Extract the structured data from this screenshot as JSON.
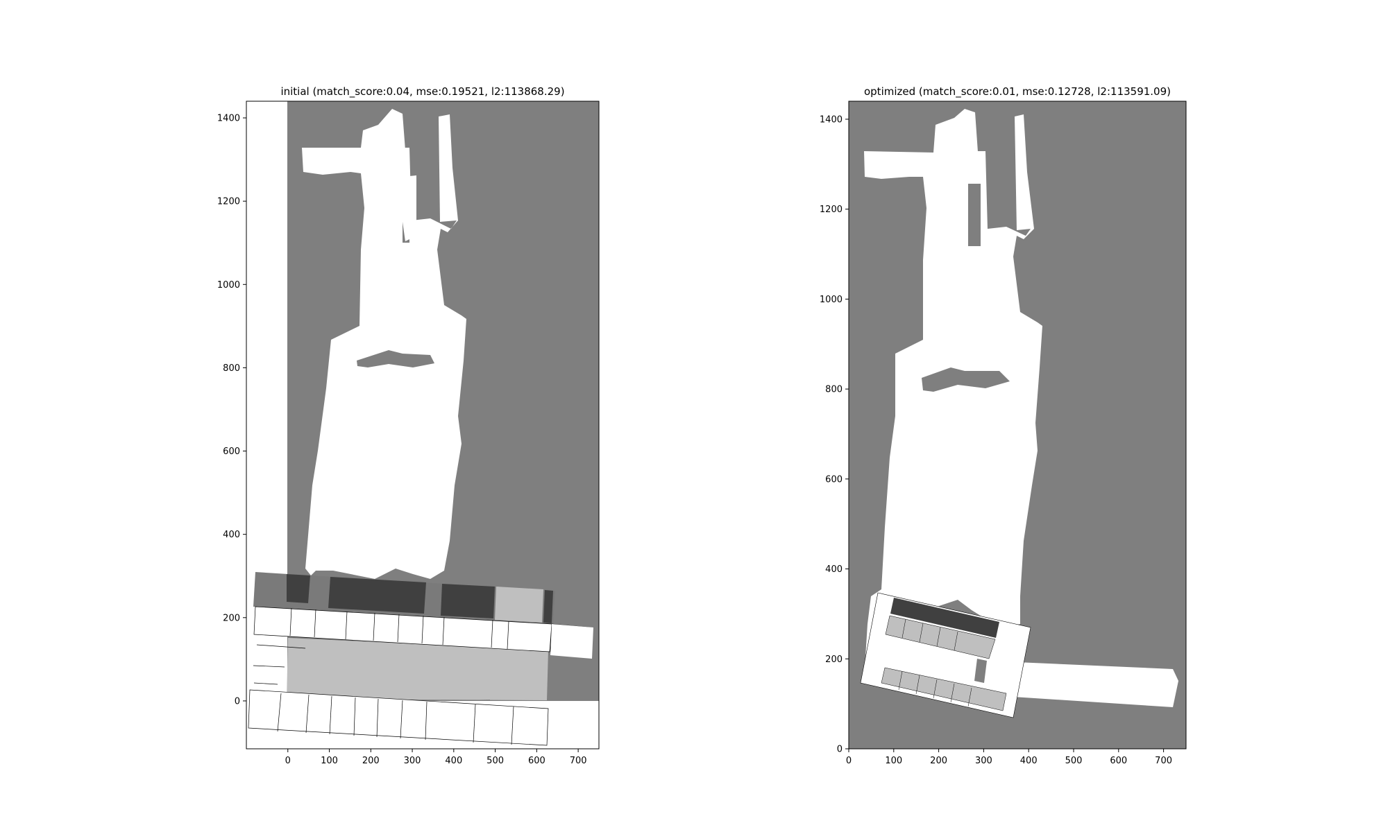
{
  "chart_data": [
    {
      "type": "heatmap",
      "title": "initial (match_score:0.04, mse:0.19521, l2:113868.29)",
      "xlabel": "",
      "ylabel": "",
      "xlim": [
        -100,
        750
      ],
      "ylim": [
        -115,
        1440
      ],
      "xticks": [
        0,
        100,
        200,
        300,
        400,
        500,
        600,
        700
      ],
      "yticks": [
        0,
        200,
        400,
        600,
        800,
        1000,
        1200,
        1400
      ],
      "grid": false,
      "colors": {
        "background": "#ffffff",
        "unknown": "#7f7f7f",
        "free": "#ffffff",
        "overlap_dark": "#404040",
        "overlap_light": "#bfbfbf"
      }
    },
    {
      "type": "heatmap",
      "title": "optimized (match_score:0.01, mse:0.12728, l2:113591.09)",
      "xlabel": "",
      "ylabel": "",
      "xlim": [
        0,
        750
      ],
      "ylim": [
        0,
        1440
      ],
      "xticks": [
        0,
        100,
        200,
        300,
        400,
        500,
        600,
        700
      ],
      "yticks": [
        0,
        200,
        400,
        600,
        800,
        1000,
        1200,
        1400
      ],
      "grid": false,
      "colors": {
        "background": "#ffffff",
        "unknown": "#7f7f7f",
        "free": "#ffffff",
        "overlap_dark": "#404040",
        "overlap_light": "#bfbfbf"
      }
    }
  ]
}
